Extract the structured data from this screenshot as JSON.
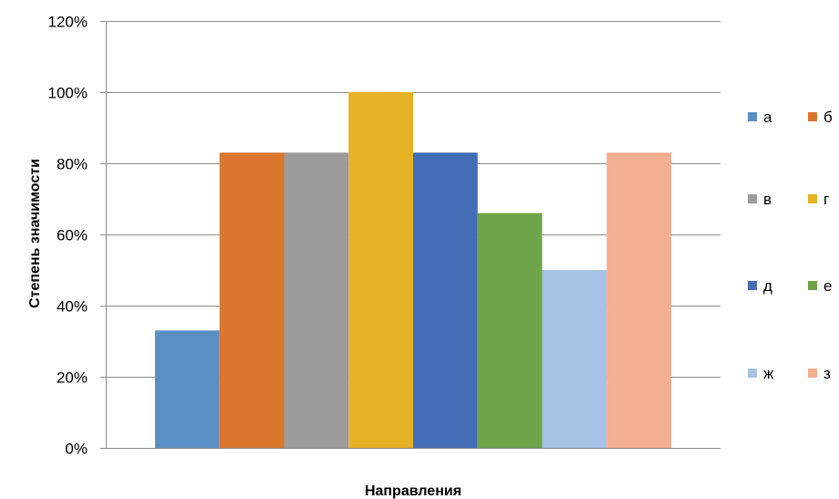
{
  "chart_data": {
    "type": "bar",
    "title": "",
    "xlabel": "Направления",
    "ylabel": "Степень значимости",
    "ylim": [
      0,
      120
    ],
    "yticks": [
      "0%",
      "20%",
      "40%",
      "60%",
      "80%",
      "100%",
      "120%"
    ],
    "grid": true,
    "legend_position": "right",
    "series": [
      {
        "name": "а",
        "value": 33,
        "color": "#5B8FC3"
      },
      {
        "name": "б",
        "value": 83,
        "color": "#D9772F"
      },
      {
        "name": "в",
        "value": 83,
        "color": "#9B9B9B"
      },
      {
        "name": "г",
        "value": 100,
        "color": "#E5B125"
      },
      {
        "name": "д",
        "value": 83,
        "color": "#436EB5"
      },
      {
        "name": "е",
        "value": 66,
        "color": "#6FA44A"
      },
      {
        "name": "ж",
        "value": 50,
        "color": "#A7C2E3"
      },
      {
        "name": "з",
        "value": 83,
        "color": "#F4AE92"
      }
    ]
  }
}
